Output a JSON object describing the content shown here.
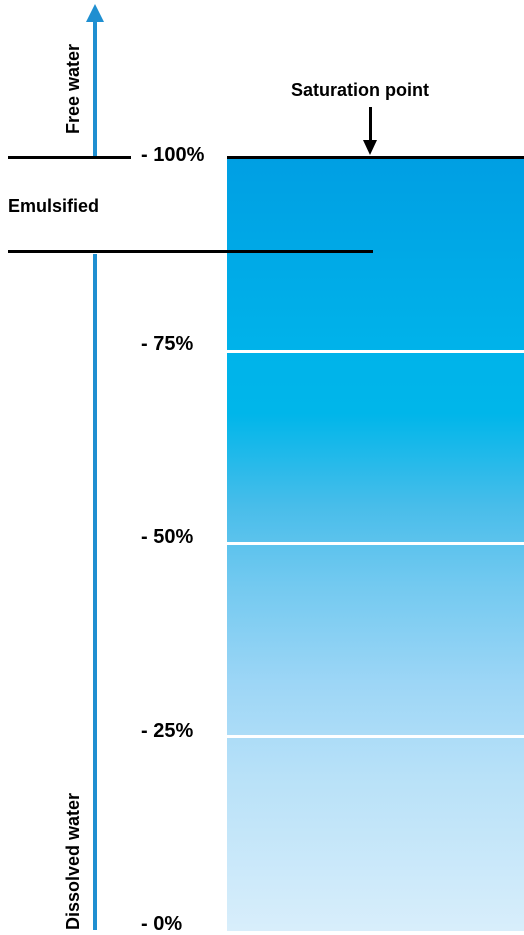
{
  "labels": {
    "free_water": "Free water",
    "dissolved_water": "Dissolved water",
    "emulsified": "Emulsified",
    "saturation_point": "Saturation point"
  },
  "scale": {
    "ticks": [
      "- 100%",
      "- 75%",
      "- 50%",
      "- 25%",
      "- 0%"
    ]
  },
  "colors": {
    "arrow": "#1f8fd1",
    "column_top": "#009fe3",
    "column_bottom": "#d8eefb"
  }
}
